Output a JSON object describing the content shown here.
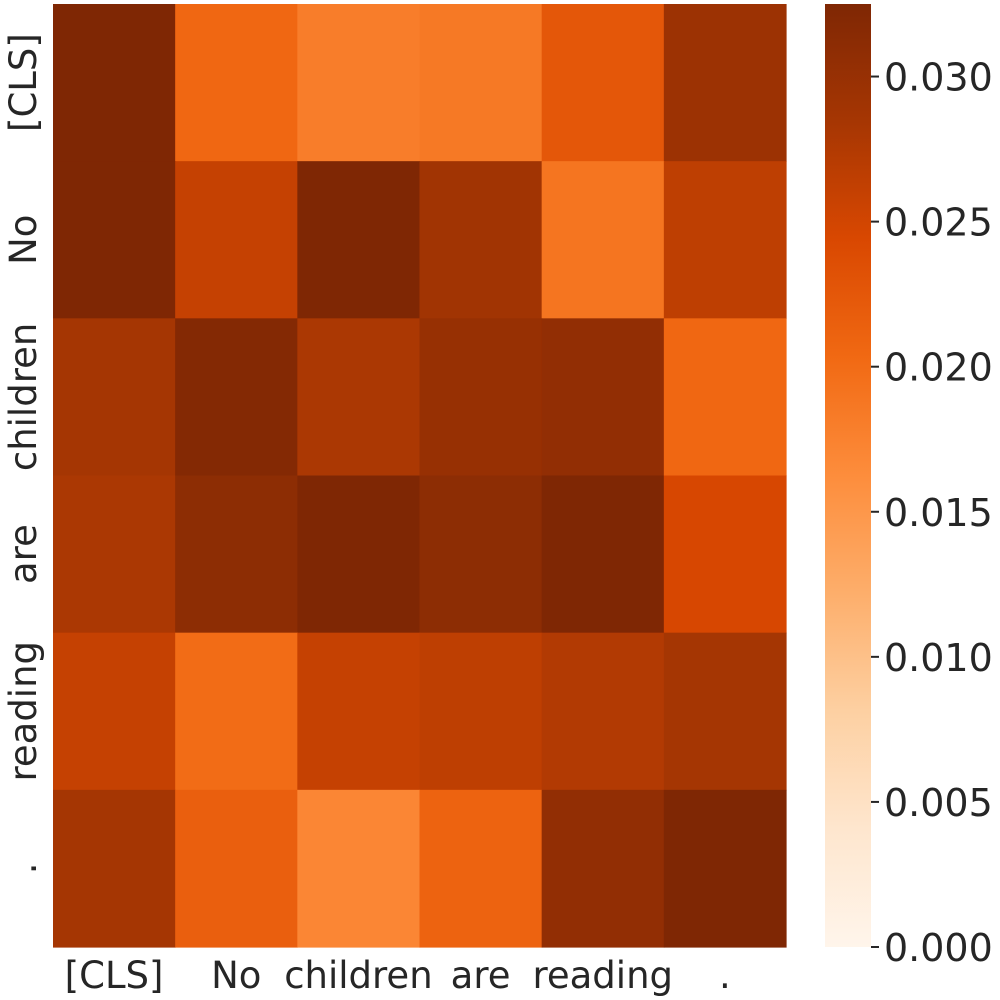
{
  "chart_data": {
    "type": "heatmap",
    "title": "",
    "xlabel": "",
    "ylabel": "",
    "x_labels": [
      "[CLS]",
      "No",
      "children",
      "are",
      "reading",
      "."
    ],
    "y_labels": [
      "[CLS]",
      "No",
      "children",
      "are",
      "reading",
      "."
    ],
    "values": [
      [
        0.0325,
        0.0205,
        0.018,
        0.0185,
        0.0225,
        0.0295
      ],
      [
        0.0325,
        0.026,
        0.0325,
        0.029,
        0.019,
        0.0265
      ],
      [
        0.0285,
        0.032,
        0.028,
        0.03,
        0.0305,
        0.0205
      ],
      [
        0.028,
        0.031,
        0.0325,
        0.031,
        0.0325,
        0.0245
      ],
      [
        0.026,
        0.02,
        0.026,
        0.0265,
        0.0275,
        0.0285
      ],
      [
        0.0285,
        0.0215,
        0.017,
        0.021,
        0.0305,
        0.0325
      ]
    ],
    "colormap": "Oranges",
    "colormap_stops": [
      "#fff5eb",
      "#fee6ce",
      "#fdd0a2",
      "#fdae6b",
      "#fd8d3c",
      "#f16913",
      "#d94801",
      "#a63603",
      "#7f2704"
    ],
    "vmin": 0.0,
    "vmax": 0.0325,
    "colorbar": {
      "ticks": [
        0.0,
        0.005,
        0.01,
        0.015,
        0.02,
        0.025,
        0.03
      ],
      "tick_labels": [
        "0.000",
        "0.005",
        "0.010",
        "0.015",
        "0.020",
        "0.025",
        "0.030"
      ]
    }
  }
}
